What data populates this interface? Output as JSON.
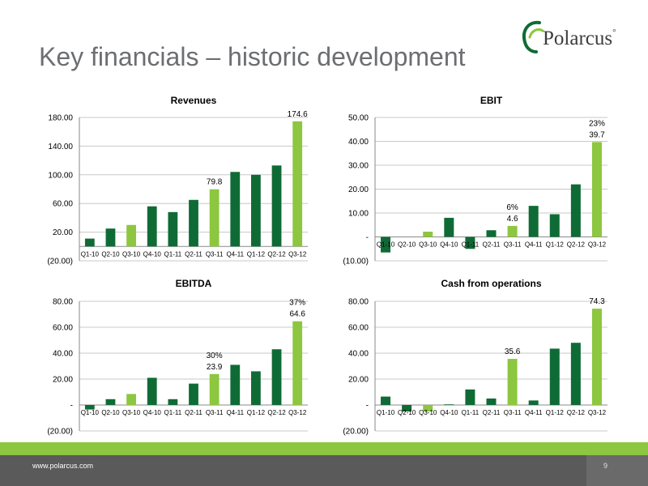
{
  "slide": {
    "title": "Key financials – historic development"
  },
  "logo": {
    "text": "Polarcus",
    "mark": "°"
  },
  "footer": {
    "url": "www.polarcus.com",
    "page": "9"
  },
  "colors": {
    "dark_bar": "#0f6b35",
    "light_bar": "#8dc63f",
    "footer_green": "#8dc63f",
    "footer_dark": "#5a5a5a"
  },
  "chart_data": [
    {
      "id": "revenues",
      "type": "bar",
      "title": "Revenues",
      "categories": [
        "Q1-10",
        "Q2-10",
        "Q3-10",
        "Q4-10",
        "Q1-11",
        "Q2-11",
        "Q3-11",
        "Q4-11",
        "Q1-12",
        "Q2-12",
        "Q3-12"
      ],
      "values": [
        11,
        25,
        30,
        56,
        48,
        65,
        79.8,
        104,
        100,
        113,
        174.6
      ],
      "highlight": [
        false,
        false,
        true,
        false,
        false,
        false,
        true,
        false,
        false,
        false,
        true
      ],
      "yticks": [
        "180.00",
        "140.00",
        "100.00",
        "60.00",
        "20.00",
        "(20.00)"
      ],
      "ytick_values": [
        180,
        140,
        100,
        60,
        20,
        -20
      ],
      "ylim": [
        -20,
        180
      ],
      "value_labels": [
        {
          "index": 6,
          "text": "79.8"
        },
        {
          "index": 10,
          "text": "174.6"
        }
      ],
      "pct_labels": []
    },
    {
      "id": "ebit",
      "type": "bar",
      "title": "EBIT",
      "categories": [
        "Q1-10",
        "Q2-10",
        "Q3-10",
        "Q4-10",
        "Q1-11",
        "Q2-11",
        "Q3-11",
        "Q4-11",
        "Q1-12",
        "Q2-12",
        "Q3-12"
      ],
      "values": [
        -6.5,
        0,
        2.2,
        8,
        -5,
        2.8,
        4.6,
        13,
        9.5,
        22,
        39.7
      ],
      "highlight": [
        false,
        false,
        true,
        false,
        false,
        false,
        true,
        false,
        false,
        false,
        true
      ],
      "yticks": [
        "50.00",
        "40.00",
        "30.00",
        "20.00",
        "10.00",
        "-",
        "(10.00)"
      ],
      "ytick_values": [
        50,
        40,
        30,
        20,
        10,
        0,
        -10
      ],
      "ylim": [
        -10,
        50
      ],
      "value_labels": [
        {
          "index": 6,
          "text": "4.6"
        },
        {
          "index": 10,
          "text": "39.7"
        }
      ],
      "pct_labels": [
        {
          "index": 6,
          "text": "6%"
        },
        {
          "index": 10,
          "text": "23%"
        }
      ]
    },
    {
      "id": "ebitda",
      "type": "bar",
      "title": "EBITDA",
      "categories": [
        "Q1-10",
        "Q2-10",
        "Q3-10",
        "Q4-10",
        "Q1-11",
        "Q2-11",
        "Q3-11",
        "Q4-11",
        "Q1-12",
        "Q2-12",
        "Q3-12"
      ],
      "values": [
        -3.5,
        4.5,
        8.5,
        21,
        4.5,
        16.5,
        23.9,
        31,
        26,
        43,
        64.6
      ],
      "highlight": [
        false,
        false,
        true,
        false,
        false,
        false,
        true,
        false,
        false,
        false,
        true
      ],
      "yticks": [
        "80.00",
        "60.00",
        "40.00",
        "20.00",
        "-",
        "(20.00)"
      ],
      "ytick_values": [
        80,
        60,
        40,
        20,
        0,
        -20
      ],
      "ylim": [
        -20,
        80
      ],
      "value_labels": [
        {
          "index": 6,
          "text": "23.9"
        },
        {
          "index": 10,
          "text": "64.6"
        }
      ],
      "pct_labels": [
        {
          "index": 6,
          "text": "30%"
        },
        {
          "index": 10,
          "text": "37%"
        }
      ]
    },
    {
      "id": "cash",
      "type": "bar",
      "title": "Cash from operations",
      "categories": [
        "Q1-10",
        "Q2-10",
        "Q3-10",
        "Q4-10",
        "Q1-11",
        "Q2-11",
        "Q3-11",
        "Q4-11",
        "Q1-12",
        "Q2-12",
        "Q3-12"
      ],
      "values": [
        6.5,
        -5,
        -5,
        0.5,
        12,
        5,
        35.6,
        3.5,
        43.5,
        48,
        74.3
      ],
      "highlight": [
        false,
        false,
        true,
        false,
        false,
        false,
        true,
        false,
        false,
        false,
        true
      ],
      "yticks": [
        "80.00",
        "60.00",
        "40.00",
        "20.00",
        "-",
        "(20.00)"
      ],
      "ytick_values": [
        80,
        60,
        40,
        20,
        0,
        -20
      ],
      "ylim": [
        -20,
        80
      ],
      "value_labels": [
        {
          "index": 6,
          "text": "35.6"
        },
        {
          "index": 10,
          "text": "74.3"
        }
      ],
      "pct_labels": []
    }
  ]
}
